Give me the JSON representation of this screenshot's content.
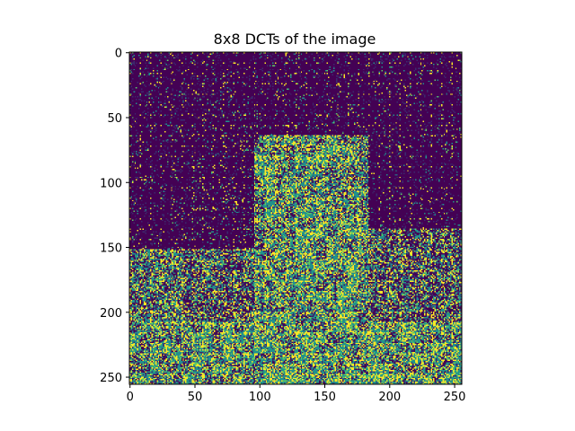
{
  "chart_data": {
    "type": "heatmap",
    "title": "8x8 DCTs of the image",
    "xlabel": "",
    "ylabel": "",
    "size": [
      256,
      256
    ],
    "block_size": 8,
    "colormap": "viridis",
    "colors": {
      "background": "#ffffff",
      "dark": "#440154",
      "mid_dark": "#3b2b6e",
      "teal": "#21918c",
      "green": "#5ec962",
      "yellow": "#fde725"
    },
    "xlim": [
      0,
      255
    ],
    "ylim": [
      255,
      0
    ],
    "x_ticks": [
      0,
      50,
      100,
      150,
      200,
      250
    ],
    "y_ticks": [
      0,
      50,
      100,
      150,
      200,
      250
    ],
    "x_tick_labels": [
      "0",
      "50",
      "100",
      "150",
      "200",
      "250"
    ],
    "y_tick_labels": [
      "0",
      "50",
      "100",
      "150",
      "200",
      "250"
    ],
    "grid": false,
    "legend": "none"
  }
}
